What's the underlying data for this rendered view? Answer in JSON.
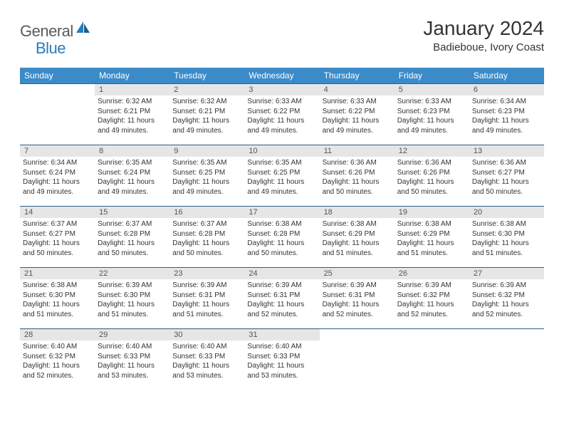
{
  "logo": {
    "text1": "General",
    "text2": "Blue"
  },
  "title": "January 2024",
  "location": "Badieboue, Ivory Coast",
  "colors": {
    "header_bg": "#3b8bc9",
    "header_text": "#ffffff",
    "daynum_bg": "#e6e6e6",
    "row_border": "#2b5f8a",
    "logo_gray": "#5a5a5a",
    "logo_blue": "#2b7bbd"
  },
  "weekdays": [
    "Sunday",
    "Monday",
    "Tuesday",
    "Wednesday",
    "Thursday",
    "Friday",
    "Saturday"
  ],
  "weeks": [
    [
      null,
      {
        "n": "1",
        "sr": "Sunrise: 6:32 AM",
        "ss": "Sunset: 6:21 PM",
        "d1": "Daylight: 11 hours",
        "d2": "and 49 minutes."
      },
      {
        "n": "2",
        "sr": "Sunrise: 6:32 AM",
        "ss": "Sunset: 6:21 PM",
        "d1": "Daylight: 11 hours",
        "d2": "and 49 minutes."
      },
      {
        "n": "3",
        "sr": "Sunrise: 6:33 AM",
        "ss": "Sunset: 6:22 PM",
        "d1": "Daylight: 11 hours",
        "d2": "and 49 minutes."
      },
      {
        "n": "4",
        "sr": "Sunrise: 6:33 AM",
        "ss": "Sunset: 6:22 PM",
        "d1": "Daylight: 11 hours",
        "d2": "and 49 minutes."
      },
      {
        "n": "5",
        "sr": "Sunrise: 6:33 AM",
        "ss": "Sunset: 6:23 PM",
        "d1": "Daylight: 11 hours",
        "d2": "and 49 minutes."
      },
      {
        "n": "6",
        "sr": "Sunrise: 6:34 AM",
        "ss": "Sunset: 6:23 PM",
        "d1": "Daylight: 11 hours",
        "d2": "and 49 minutes."
      }
    ],
    [
      {
        "n": "7",
        "sr": "Sunrise: 6:34 AM",
        "ss": "Sunset: 6:24 PM",
        "d1": "Daylight: 11 hours",
        "d2": "and 49 minutes."
      },
      {
        "n": "8",
        "sr": "Sunrise: 6:35 AM",
        "ss": "Sunset: 6:24 PM",
        "d1": "Daylight: 11 hours",
        "d2": "and 49 minutes."
      },
      {
        "n": "9",
        "sr": "Sunrise: 6:35 AM",
        "ss": "Sunset: 6:25 PM",
        "d1": "Daylight: 11 hours",
        "d2": "and 49 minutes."
      },
      {
        "n": "10",
        "sr": "Sunrise: 6:35 AM",
        "ss": "Sunset: 6:25 PM",
        "d1": "Daylight: 11 hours",
        "d2": "and 49 minutes."
      },
      {
        "n": "11",
        "sr": "Sunrise: 6:36 AM",
        "ss": "Sunset: 6:26 PM",
        "d1": "Daylight: 11 hours",
        "d2": "and 50 minutes."
      },
      {
        "n": "12",
        "sr": "Sunrise: 6:36 AM",
        "ss": "Sunset: 6:26 PM",
        "d1": "Daylight: 11 hours",
        "d2": "and 50 minutes."
      },
      {
        "n": "13",
        "sr": "Sunrise: 6:36 AM",
        "ss": "Sunset: 6:27 PM",
        "d1": "Daylight: 11 hours",
        "d2": "and 50 minutes."
      }
    ],
    [
      {
        "n": "14",
        "sr": "Sunrise: 6:37 AM",
        "ss": "Sunset: 6:27 PM",
        "d1": "Daylight: 11 hours",
        "d2": "and 50 minutes."
      },
      {
        "n": "15",
        "sr": "Sunrise: 6:37 AM",
        "ss": "Sunset: 6:28 PM",
        "d1": "Daylight: 11 hours",
        "d2": "and 50 minutes."
      },
      {
        "n": "16",
        "sr": "Sunrise: 6:37 AM",
        "ss": "Sunset: 6:28 PM",
        "d1": "Daylight: 11 hours",
        "d2": "and 50 minutes."
      },
      {
        "n": "17",
        "sr": "Sunrise: 6:38 AM",
        "ss": "Sunset: 6:28 PM",
        "d1": "Daylight: 11 hours",
        "d2": "and 50 minutes."
      },
      {
        "n": "18",
        "sr": "Sunrise: 6:38 AM",
        "ss": "Sunset: 6:29 PM",
        "d1": "Daylight: 11 hours",
        "d2": "and 51 minutes."
      },
      {
        "n": "19",
        "sr": "Sunrise: 6:38 AM",
        "ss": "Sunset: 6:29 PM",
        "d1": "Daylight: 11 hours",
        "d2": "and 51 minutes."
      },
      {
        "n": "20",
        "sr": "Sunrise: 6:38 AM",
        "ss": "Sunset: 6:30 PM",
        "d1": "Daylight: 11 hours",
        "d2": "and 51 minutes."
      }
    ],
    [
      {
        "n": "21",
        "sr": "Sunrise: 6:38 AM",
        "ss": "Sunset: 6:30 PM",
        "d1": "Daylight: 11 hours",
        "d2": "and 51 minutes."
      },
      {
        "n": "22",
        "sr": "Sunrise: 6:39 AM",
        "ss": "Sunset: 6:30 PM",
        "d1": "Daylight: 11 hours",
        "d2": "and 51 minutes."
      },
      {
        "n": "23",
        "sr": "Sunrise: 6:39 AM",
        "ss": "Sunset: 6:31 PM",
        "d1": "Daylight: 11 hours",
        "d2": "and 51 minutes."
      },
      {
        "n": "24",
        "sr": "Sunrise: 6:39 AM",
        "ss": "Sunset: 6:31 PM",
        "d1": "Daylight: 11 hours",
        "d2": "and 52 minutes."
      },
      {
        "n": "25",
        "sr": "Sunrise: 6:39 AM",
        "ss": "Sunset: 6:31 PM",
        "d1": "Daylight: 11 hours",
        "d2": "and 52 minutes."
      },
      {
        "n": "26",
        "sr": "Sunrise: 6:39 AM",
        "ss": "Sunset: 6:32 PM",
        "d1": "Daylight: 11 hours",
        "d2": "and 52 minutes."
      },
      {
        "n": "27",
        "sr": "Sunrise: 6:39 AM",
        "ss": "Sunset: 6:32 PM",
        "d1": "Daylight: 11 hours",
        "d2": "and 52 minutes."
      }
    ],
    [
      {
        "n": "28",
        "sr": "Sunrise: 6:40 AM",
        "ss": "Sunset: 6:32 PM",
        "d1": "Daylight: 11 hours",
        "d2": "and 52 minutes."
      },
      {
        "n": "29",
        "sr": "Sunrise: 6:40 AM",
        "ss": "Sunset: 6:33 PM",
        "d1": "Daylight: 11 hours",
        "d2": "and 53 minutes."
      },
      {
        "n": "30",
        "sr": "Sunrise: 6:40 AM",
        "ss": "Sunset: 6:33 PM",
        "d1": "Daylight: 11 hours",
        "d2": "and 53 minutes."
      },
      {
        "n": "31",
        "sr": "Sunrise: 6:40 AM",
        "ss": "Sunset: 6:33 PM",
        "d1": "Daylight: 11 hours",
        "d2": "and 53 minutes."
      },
      null,
      null,
      null
    ]
  ]
}
